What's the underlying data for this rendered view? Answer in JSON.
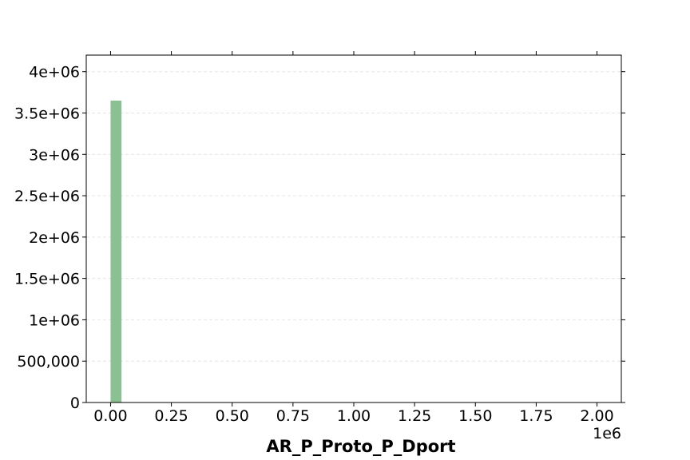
{
  "chart_data": {
    "type": "bar",
    "xlabel": "AR_P_Proto_P_Dport",
    "ylabel": "",
    "x_offset_label": "1e6",
    "xlim": [
      -100000,
      2100000
    ],
    "ylim": [
      0,
      4200000
    ],
    "x_ticks": [
      0,
      250000,
      500000,
      750000,
      1000000,
      1250000,
      1500000,
      1750000,
      2000000
    ],
    "x_tick_labels": [
      "0.00",
      "0.25",
      "0.50",
      "0.75",
      "1.00",
      "1.25",
      "1.50",
      "1.75",
      "2.00"
    ],
    "y_ticks": [
      0,
      500000,
      1000000,
      1500000,
      2000000,
      2500000,
      3000000,
      3500000,
      4000000
    ],
    "y_tick_labels": [
      "0",
      "500,000",
      "1e+06",
      "1.5e+06",
      "2e+06",
      "2.5e+06",
      "3e+06",
      "3.5e+06",
      "4e+06"
    ],
    "bars": [
      {
        "x0": 0,
        "x1": 45000,
        "value": 3650000
      }
    ],
    "bar_color": "#8bc192",
    "grid": true
  }
}
